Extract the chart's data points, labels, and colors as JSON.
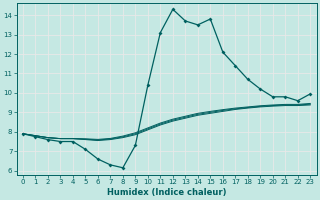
{
  "xlabel": "Humidex (Indice chaleur)",
  "xlim": [
    -0.5,
    23.5
  ],
  "ylim": [
    5.8,
    14.6
  ],
  "xticks": [
    0,
    1,
    2,
    3,
    4,
    5,
    6,
    7,
    8,
    9,
    10,
    11,
    12,
    13,
    14,
    15,
    16,
    17,
    18,
    19,
    20,
    21,
    22,
    23
  ],
  "yticks": [
    6,
    7,
    8,
    9,
    10,
    11,
    12,
    13,
    14
  ],
  "bg_color": "#c5e8e3",
  "line_color": "#006060",
  "grid_color": "#e8e8e8",
  "main_line": {
    "x": [
      0,
      1,
      2,
      3,
      4,
      5,
      6,
      7,
      8,
      9,
      10,
      11,
      12,
      13,
      14,
      15,
      16,
      17,
      18,
      19,
      20,
      21,
      22,
      23
    ],
    "y": [
      7.9,
      7.75,
      7.6,
      7.5,
      7.5,
      7.1,
      6.6,
      6.3,
      6.15,
      7.3,
      10.4,
      13.1,
      14.3,
      13.7,
      13.5,
      13.8,
      12.1,
      11.4,
      10.7,
      10.2,
      9.8,
      9.8,
      9.6,
      9.95
    ]
  },
  "bg_lines": [
    [
      7.9,
      7.8,
      7.7,
      7.65,
      7.65,
      7.6,
      7.55,
      7.6,
      7.7,
      7.85,
      8.1,
      8.35,
      8.55,
      8.7,
      8.85,
      8.95,
      9.05,
      9.15,
      9.22,
      9.28,
      9.32,
      9.35,
      9.35,
      9.38
    ],
    [
      7.9,
      7.8,
      7.7,
      7.65,
      7.65,
      7.62,
      7.58,
      7.63,
      7.74,
      7.9,
      8.15,
      8.4,
      8.6,
      8.75,
      8.9,
      9.0,
      9.1,
      9.18,
      9.25,
      9.31,
      9.35,
      9.38,
      9.38,
      9.42
    ],
    [
      7.9,
      7.8,
      7.7,
      7.65,
      7.65,
      7.64,
      7.61,
      7.66,
      7.78,
      7.95,
      8.2,
      8.45,
      8.65,
      8.8,
      8.95,
      9.05,
      9.14,
      9.22,
      9.28,
      9.34,
      9.38,
      9.41,
      9.41,
      9.46
    ]
  ]
}
